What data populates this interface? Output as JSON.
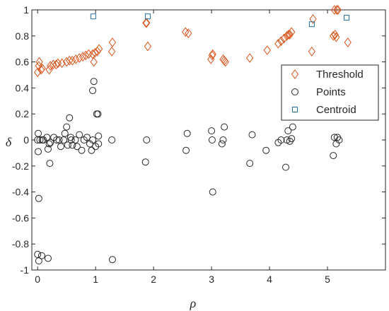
{
  "chart_data": {
    "type": "scatter",
    "xlabel": "ρ",
    "ylabel": "δ",
    "xlim": [
      -0.1,
      6.0
    ],
    "ylim": [
      -1.0,
      1.0
    ],
    "x_ticks": [
      0,
      1,
      2,
      3,
      4,
      5
    ],
    "y_ticks": [
      -1,
      -0.8,
      -0.6,
      -0.4,
      -0.2,
      0,
      0.2,
      0.4,
      0.6,
      0.8,
      1
    ],
    "x_tick_labels": [
      "0",
      "1",
      "2",
      "3",
      "4",
      "5"
    ],
    "y_tick_labels": [
      "-1",
      "-0.8",
      "-0.6",
      "-0.4",
      "-0.2",
      "0",
      "0.2",
      "0.4",
      "0.6",
      "0.8",
      "1"
    ],
    "grid": false,
    "legend_position": "right",
    "series": [
      {
        "name": "Threshold",
        "marker": "diamond",
        "color": "#d95319",
        "points": [
          [
            0.0,
            0.52
          ],
          [
            0.02,
            0.57
          ],
          [
            0.03,
            0.6
          ],
          [
            0.06,
            0.54
          ],
          [
            0.08,
            0.55
          ],
          [
            0.2,
            0.54
          ],
          [
            0.22,
            0.57
          ],
          [
            0.27,
            0.58
          ],
          [
            0.32,
            0.58
          ],
          [
            0.35,
            0.59
          ],
          [
            0.42,
            0.59
          ],
          [
            0.5,
            0.6
          ],
          [
            0.55,
            0.61
          ],
          [
            0.6,
            0.61
          ],
          [
            0.66,
            0.62
          ],
          [
            0.72,
            0.63
          ],
          [
            0.78,
            0.64
          ],
          [
            0.83,
            0.65
          ],
          [
            0.88,
            0.66
          ],
          [
            0.95,
            0.66
          ],
          [
            0.97,
            0.6
          ],
          [
            0.99,
            0.67
          ],
          [
            1.03,
            0.68
          ],
          [
            1.06,
            0.7
          ],
          [
            1.28,
            0.68
          ],
          [
            1.29,
            0.75
          ],
          [
            1.87,
            0.9
          ],
          [
            1.88,
            0.9
          ],
          [
            1.9,
            0.72
          ],
          [
            2.55,
            0.83
          ],
          [
            2.6,
            0.82
          ],
          [
            2.99,
            0.62
          ],
          [
            3.01,
            0.65
          ],
          [
            3.02,
            0.66
          ],
          [
            3.2,
            0.62
          ],
          [
            3.22,
            0.61
          ],
          [
            3.24,
            0.6
          ],
          [
            3.66,
            0.63
          ],
          [
            3.96,
            0.69
          ],
          [
            4.15,
            0.74
          ],
          [
            4.2,
            0.76
          ],
          [
            4.25,
            0.78
          ],
          [
            4.3,
            0.8
          ],
          [
            4.33,
            0.81
          ],
          [
            4.35,
            0.81
          ],
          [
            4.38,
            0.83
          ],
          [
            4.73,
            0.68
          ],
          [
            4.75,
            0.93
          ],
          [
            5.1,
            0.8
          ],
          [
            5.13,
            0.81
          ],
          [
            5.15,
            0.79
          ],
          [
            5.12,
            1.0
          ],
          [
            5.16,
            1.0
          ],
          [
            5.18,
            1.0
          ],
          [
            5.35,
            0.75
          ]
        ]
      },
      {
        "name": "Points",
        "marker": "circle",
        "color": "#262626",
        "points": [
          [
            0.0,
            0.0
          ],
          [
            0.01,
            0.05
          ],
          [
            0.01,
            -0.09
          ],
          [
            0.02,
            -0.45
          ],
          [
            0.0,
            -0.88
          ],
          [
            0.02,
            -0.93
          ],
          [
            0.07,
            -0.89
          ],
          [
            0.04,
            0.0
          ],
          [
            0.08,
            0.0
          ],
          [
            0.1,
            0.0
          ],
          [
            0.16,
            0.02
          ],
          [
            0.18,
            -0.07
          ],
          [
            0.2,
            -0.03
          ],
          [
            0.21,
            -0.18
          ],
          [
            0.22,
            -0.02
          ],
          [
            0.18,
            -0.91
          ],
          [
            0.28,
            0.02
          ],
          [
            0.33,
            0.0
          ],
          [
            0.37,
            0.0
          ],
          [
            0.4,
            -0.05
          ],
          [
            0.45,
            0.0
          ],
          [
            0.47,
            0.05
          ],
          [
            0.5,
            0.1
          ],
          [
            0.52,
            -0.04
          ],
          [
            0.55,
            0.17
          ],
          [
            0.57,
            0.02
          ],
          [
            0.58,
            0.0
          ],
          [
            0.6,
            -0.04
          ],
          [
            0.65,
            0.0
          ],
          [
            0.68,
            -0.05
          ],
          [
            0.72,
            0.04
          ],
          [
            0.76,
            -0.08
          ],
          [
            0.8,
            0.0
          ],
          [
            0.85,
            0.02
          ],
          [
            0.9,
            -0.03
          ],
          [
            0.93,
            -0.08
          ],
          [
            0.95,
            0.0
          ],
          [
            0.95,
            0.38
          ],
          [
            0.97,
            0.45
          ],
          [
            1.0,
            -0.05
          ],
          [
            1.02,
            0.2
          ],
          [
            1.04,
            0.2
          ],
          [
            1.05,
            0.03
          ],
          [
            1.05,
            -0.03
          ],
          [
            1.28,
            0.0
          ],
          [
            1.29,
            -0.92
          ],
          [
            1.86,
            -0.17
          ],
          [
            1.88,
            0.0
          ],
          [
            2.56,
            -0.08
          ],
          [
            2.58,
            0.05
          ],
          [
            3.0,
            0.07
          ],
          [
            3.01,
            0.0
          ],
          [
            3.02,
            -0.4
          ],
          [
            3.18,
            -0.03
          ],
          [
            3.2,
            0.0
          ],
          [
            3.22,
            0.1
          ],
          [
            3.66,
            -0.18
          ],
          [
            3.7,
            0.04
          ],
          [
            3.94,
            -0.08
          ],
          [
            4.15,
            -0.02
          ],
          [
            4.2,
            0.0
          ],
          [
            4.28,
            -0.21
          ],
          [
            4.3,
            0.0
          ],
          [
            4.32,
            0.07
          ],
          [
            4.35,
            -0.01
          ],
          [
            4.38,
            0.01
          ],
          [
            4.4,
            0.1
          ],
          [
            5.1,
            -0.12
          ],
          [
            5.12,
            0.02
          ],
          [
            5.15,
            -0.03
          ],
          [
            5.17,
            0.02
          ],
          [
            5.2,
            0.0
          ]
        ]
      },
      {
        "name": "Centroid",
        "marker": "square",
        "color": "#1f6fa8",
        "points": [
          [
            0.96,
            0.95
          ],
          [
            1.9,
            0.95
          ],
          [
            4.73,
            0.89
          ],
          [
            5.33,
            0.94
          ]
        ]
      }
    ]
  }
}
